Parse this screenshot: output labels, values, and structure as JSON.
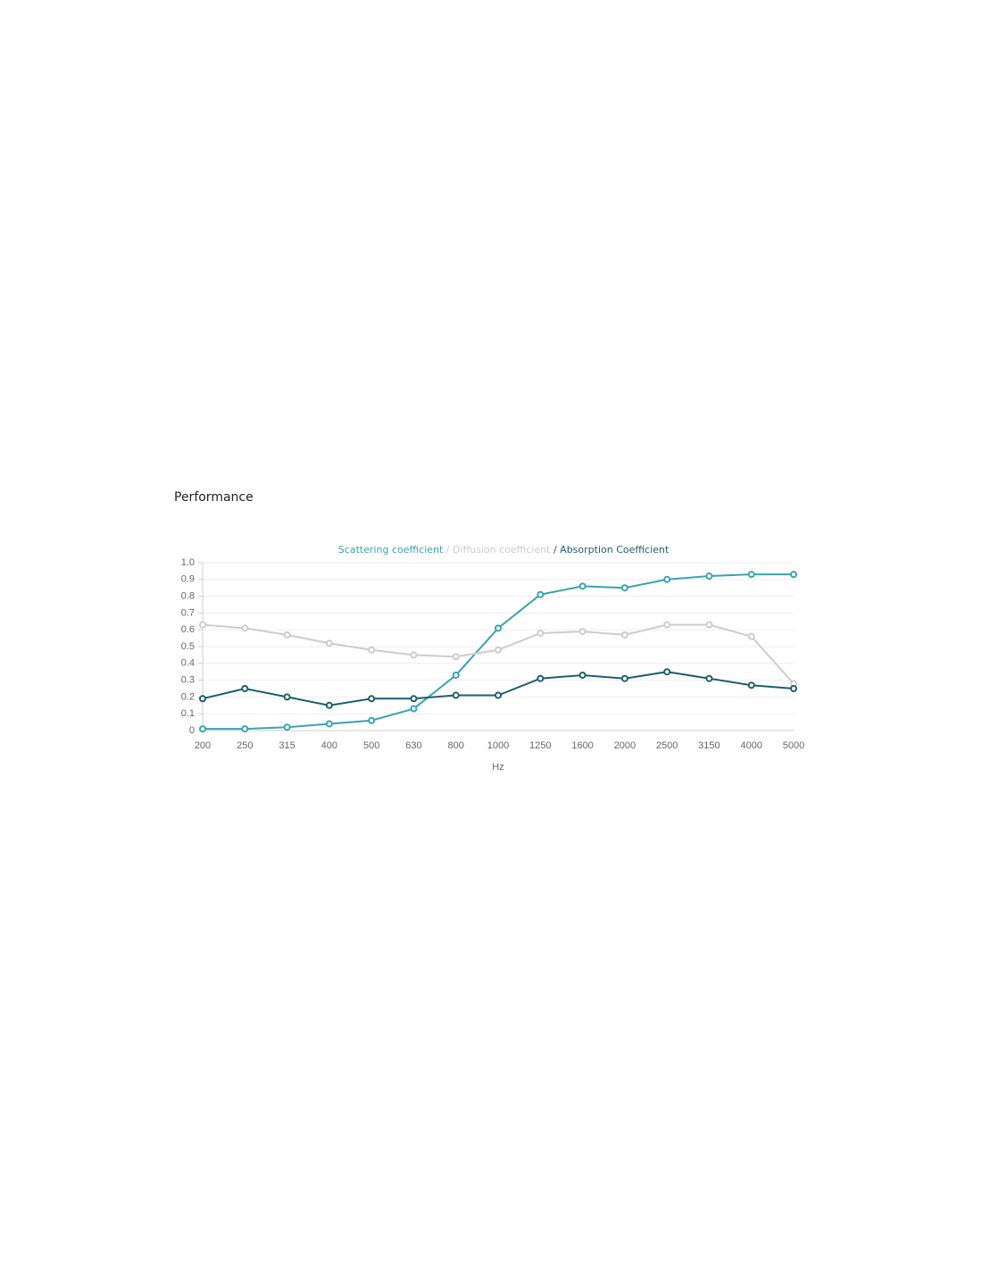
{
  "heading": "Performance",
  "chart_data": {
    "type": "line",
    "legend_separator": "/",
    "x_label": "Hz",
    "categories": [
      "200",
      "250",
      "315",
      "400",
      "500",
      "630",
      "800",
      "1000",
      "1250",
      "1600",
      "2000",
      "2500",
      "3150",
      "4000",
      "5000"
    ],
    "series": [
      {
        "name": "Scattering coefficient",
        "color": "#3aa3b0",
        "values": [
          0.01,
          0.01,
          0.02,
          0.04,
          0.06,
          0.13,
          0.33,
          0.61,
          0.81,
          0.86,
          0.85,
          0.9,
          0.92,
          0.93,
          0.93
        ]
      },
      {
        "name": "Diffusion coefficient",
        "color": "#cccccc",
        "values": [
          0.63,
          0.61,
          0.57,
          0.52,
          0.48,
          0.45,
          0.44,
          0.48,
          0.58,
          0.59,
          0.57,
          0.63,
          0.63,
          0.56,
          0.28
        ]
      },
      {
        "name": "Absorption Coefficient",
        "color": "#1e5f6e",
        "values": [
          0.19,
          0.25,
          0.2,
          0.15,
          0.19,
          0.19,
          0.21,
          0.21,
          0.31,
          0.33,
          0.31,
          0.35,
          0.31,
          0.27,
          0.25
        ]
      }
    ],
    "ylim": [
      0,
      1
    ],
    "yticks": [
      0,
      0.1,
      0.2,
      0.3,
      0.4,
      0.5,
      0.6,
      0.7,
      0.8,
      0.9,
      {
        "value": 1,
        "label": "1.0"
      }
    ],
    "grid": true
  }
}
